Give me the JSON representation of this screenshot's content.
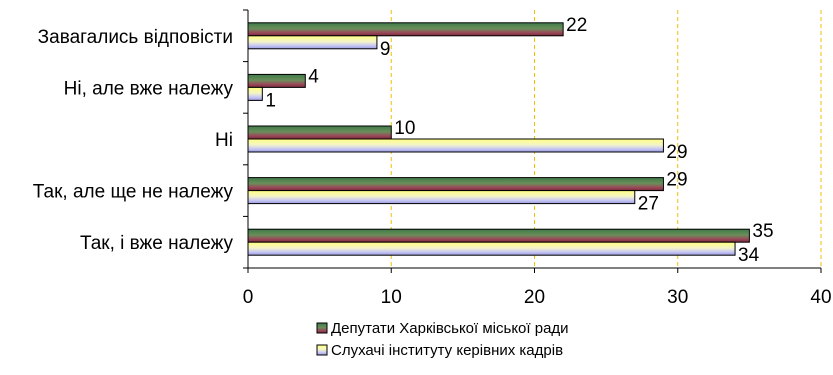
{
  "chart_data": {
    "type": "bar",
    "orientation": "horizontal",
    "categories": [
      "Завагались відповісти",
      "Ні, але вже належу",
      "Ні",
      "Так, але ще не належу",
      "Так, і вже належу"
    ],
    "series": [
      {
        "name": "Депутати Харківської міської ради",
        "values": [
          22,
          4,
          10,
          29,
          35
        ],
        "color": "#5a8a5a"
      },
      {
        "name": "Слухачі інституту керівних кадрів",
        "values": [
          9,
          1,
          29,
          27,
          34
        ],
        "color": "#c8c8f0"
      }
    ],
    "xlim": [
      0,
      40
    ],
    "xticks": [
      "0",
      "10",
      "20",
      "30",
      "40"
    ],
    "grid": "vertical dashed",
    "gridline_color": "#f0c000",
    "legend_position": "bottom"
  }
}
